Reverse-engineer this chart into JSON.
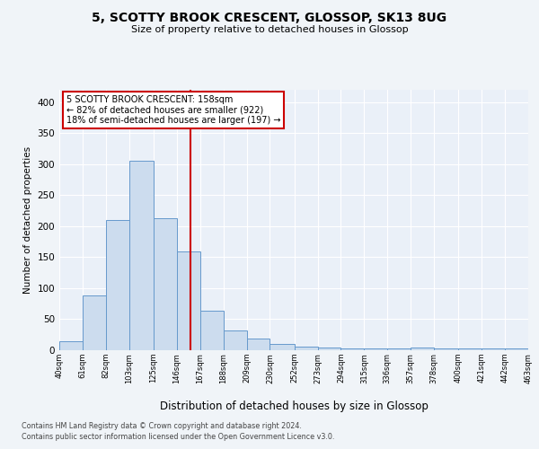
{
  "title": "5, SCOTTY BROOK CRESCENT, GLOSSOP, SK13 8UG",
  "subtitle": "Size of property relative to detached houses in Glossop",
  "xlabel": "Distribution of detached houses by size in Glossop",
  "ylabel": "Number of detached properties",
  "bar_color": "#ccdcee",
  "bar_edge_color": "#6699cc",
  "background_color": "#eaf0f8",
  "grid_color": "#ffffff",
  "bins": [
    40,
    61,
    82,
    103,
    125,
    146,
    167,
    188,
    209,
    230,
    252,
    273,
    294,
    315,
    336,
    357,
    378,
    400,
    421,
    442,
    463
  ],
  "counts": [
    15,
    89,
    210,
    305,
    213,
    160,
    64,
    32,
    19,
    10,
    6,
    5,
    3,
    3,
    3,
    4,
    3,
    3,
    3,
    3
  ],
  "tick_labels": [
    "40sqm",
    "61sqm",
    "82sqm",
    "103sqm",
    "125sqm",
    "146sqm",
    "167sqm",
    "188sqm",
    "209sqm",
    "230sqm",
    "252sqm",
    "273sqm",
    "294sqm",
    "315sqm",
    "336sqm",
    "357sqm",
    "378sqm",
    "400sqm",
    "421sqm",
    "442sqm",
    "463sqm"
  ],
  "vline_x": 158,
  "vline_color": "#cc0000",
  "annotation_lines": [
    "5 SCOTTY BROOK CRESCENT: 158sqm",
    "← 82% of detached houses are smaller (922)",
    "18% of semi-detached houses are larger (197) →"
  ],
  "ylim": [
    0,
    420
  ],
  "yticks": [
    0,
    50,
    100,
    150,
    200,
    250,
    300,
    350,
    400
  ],
  "footnote1": "Contains HM Land Registry data © Crown copyright and database right 2024.",
  "footnote2": "Contains public sector information licensed under the Open Government Licence v3.0."
}
